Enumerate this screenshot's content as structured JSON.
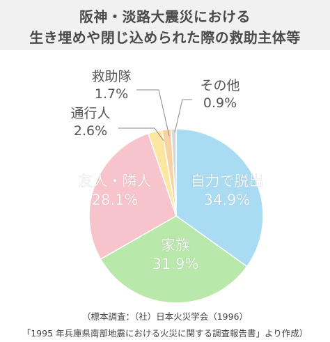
{
  "chart_data": {
    "type": "pie",
    "title": [
      "阪神・淡路大震災における",
      "生き埋めや閉じ込められた際の救助主体等"
    ],
    "slices": [
      {
        "label": "自力で脱出",
        "value": 34.9,
        "value_label": "34.9%",
        "color": "#a9dcf3"
      },
      {
        "label": "家族",
        "value": 31.9,
        "value_label": "31.9%",
        "color": "#b9e8ab"
      },
      {
        "label": "友人・隣人",
        "value": 28.1,
        "value_label": "28.1%",
        "color": "#f7c4cc"
      },
      {
        "label": "通行人",
        "value": 2.6,
        "value_label": "2.6%",
        "color": "#fde6a0"
      },
      {
        "label": "救助隊",
        "value": 1.7,
        "value_label": "1.7%",
        "color": "#f9d2a4"
      },
      {
        "label": "その他",
        "value": 0.9,
        "value_label": "0.9%",
        "color": "#d6d6d6"
      }
    ],
    "start_angle_deg": 0,
    "direction": "clockwise"
  },
  "source": {
    "line1": "（標本調査：（社）日本火災学会（1996）",
    "line2": "「1995 年兵庫県南部地震における火災に関する調査報告書」より作成）"
  }
}
